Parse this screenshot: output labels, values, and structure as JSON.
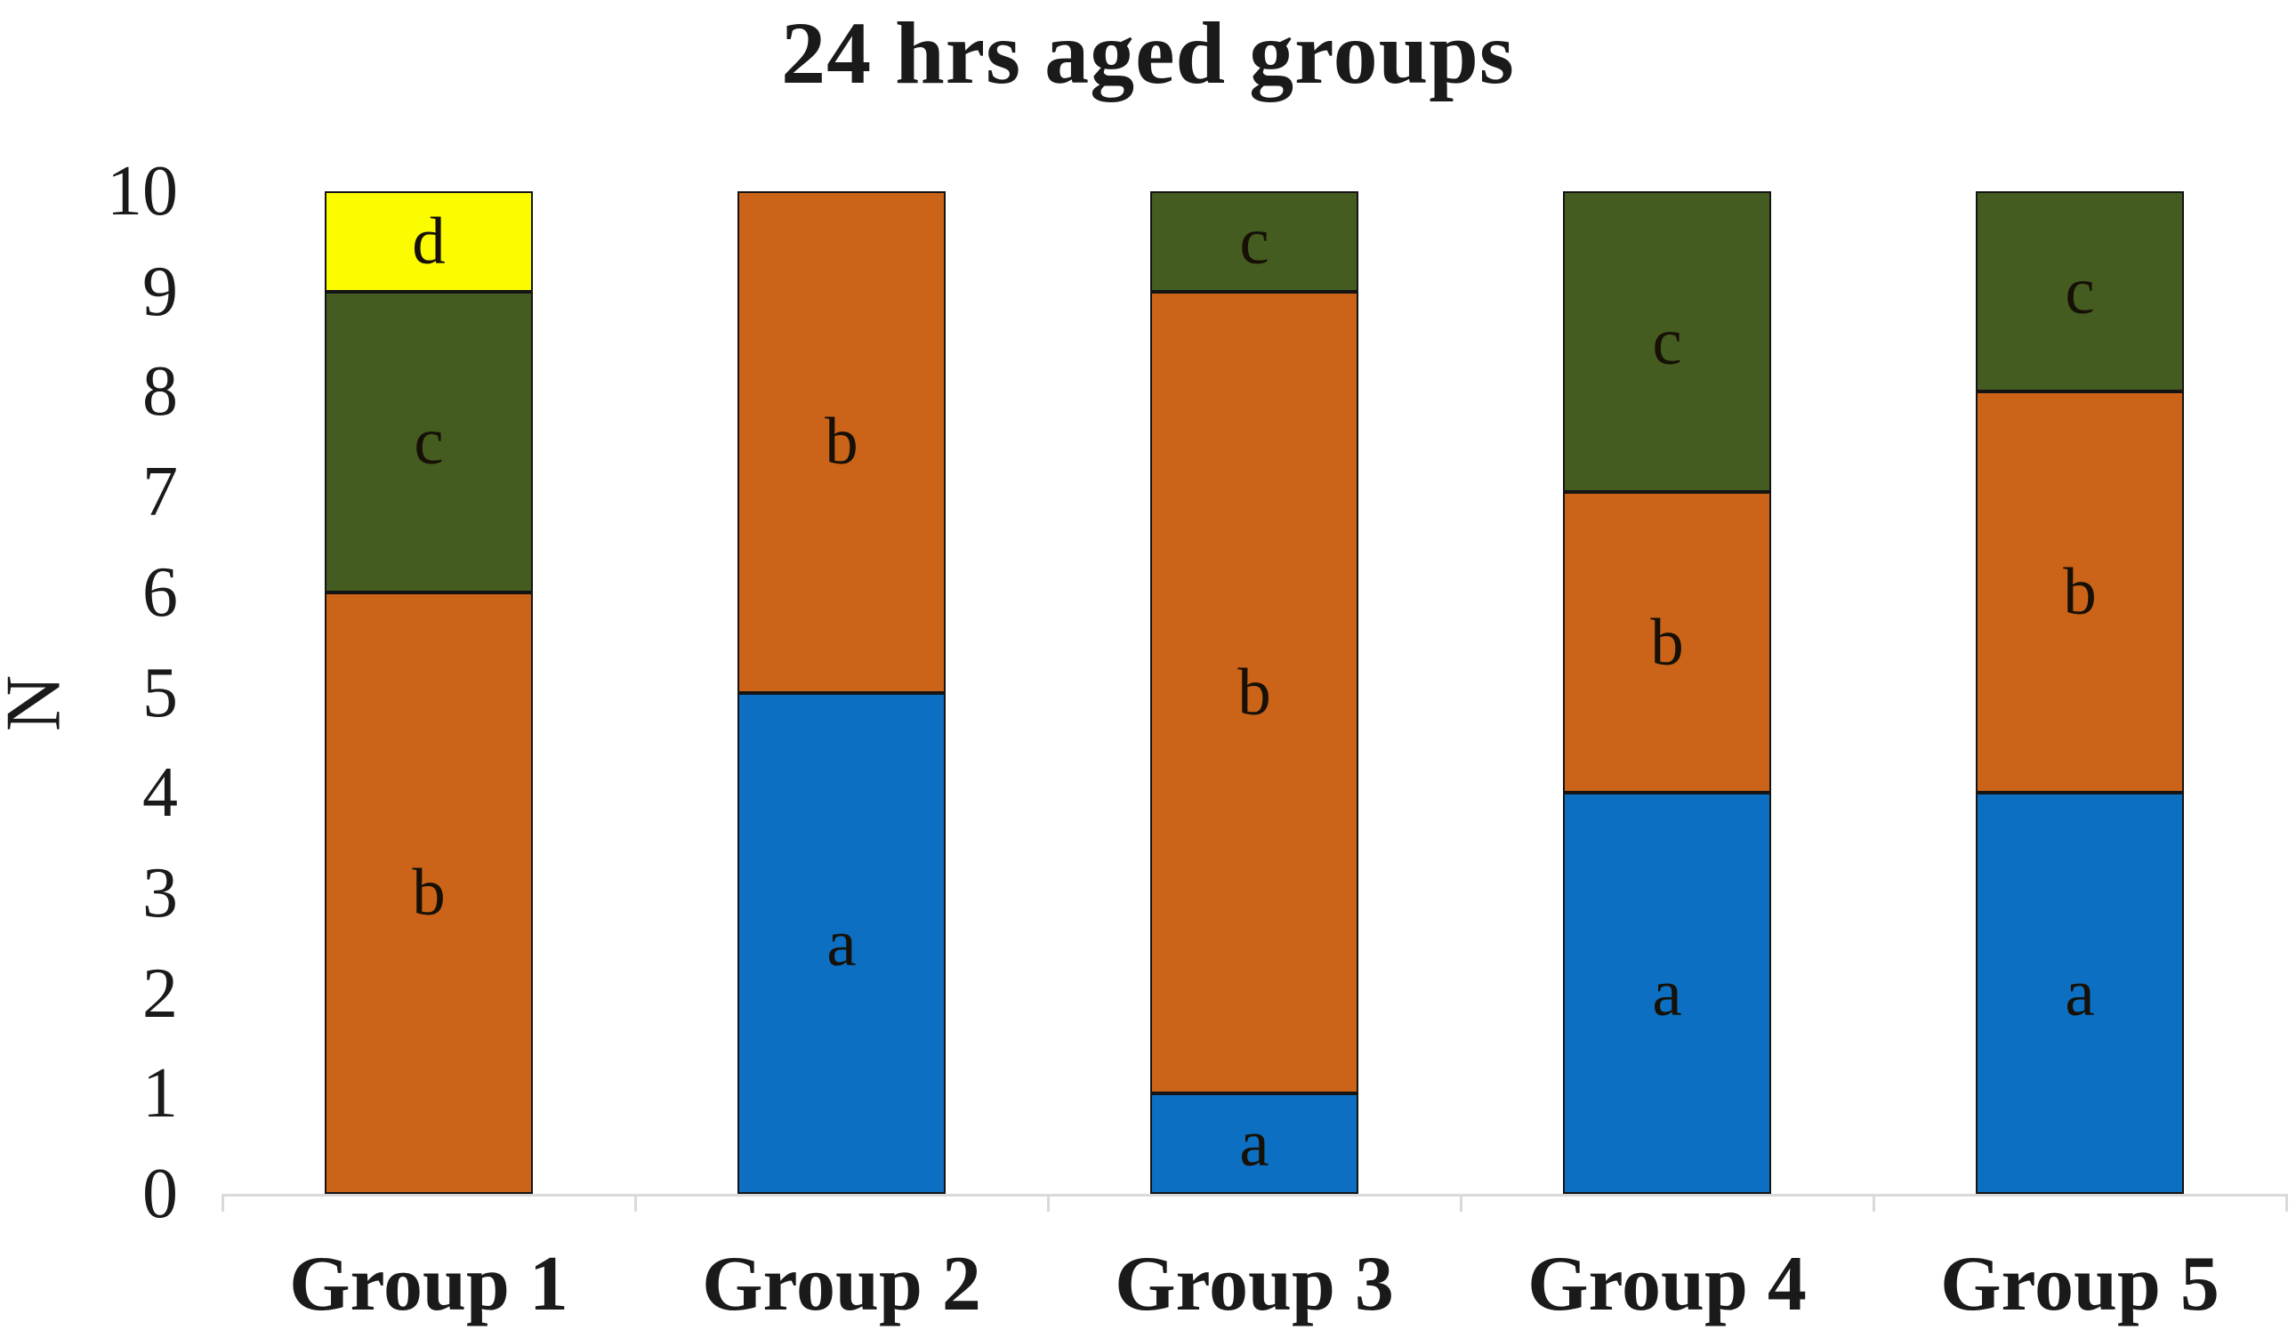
{
  "chart_data": {
    "type": "bar",
    "stacked": true,
    "title": "24 hrs aged groups",
    "xlabel": "",
    "ylabel": "N",
    "ylim": [
      0,
      10
    ],
    "yticks": [
      0,
      1,
      2,
      3,
      4,
      5,
      6,
      7,
      8,
      9,
      10
    ],
    "grid": false,
    "legend": "none",
    "categories": [
      "Group 1",
      "Group 2",
      "Group 3",
      "Group 4",
      "Group 5"
    ],
    "series": [
      {
        "name": "a",
        "color": "#0c6fc2",
        "values": [
          0,
          5,
          1,
          4,
          4
        ]
      },
      {
        "name": "b",
        "color": "#cb6418",
        "values": [
          6,
          5,
          8,
          3,
          4
        ]
      },
      {
        "name": "c",
        "color": "#455c20",
        "values": [
          3,
          0,
          1,
          3,
          2
        ]
      },
      {
        "name": "d",
        "color": "#fcfc00",
        "values": [
          1,
          0,
          0,
          0,
          0
        ]
      }
    ],
    "colors": {
      "axis_line": "#d9d9d9",
      "segment_border": "#141414",
      "text": "#1a1a1a"
    }
  }
}
